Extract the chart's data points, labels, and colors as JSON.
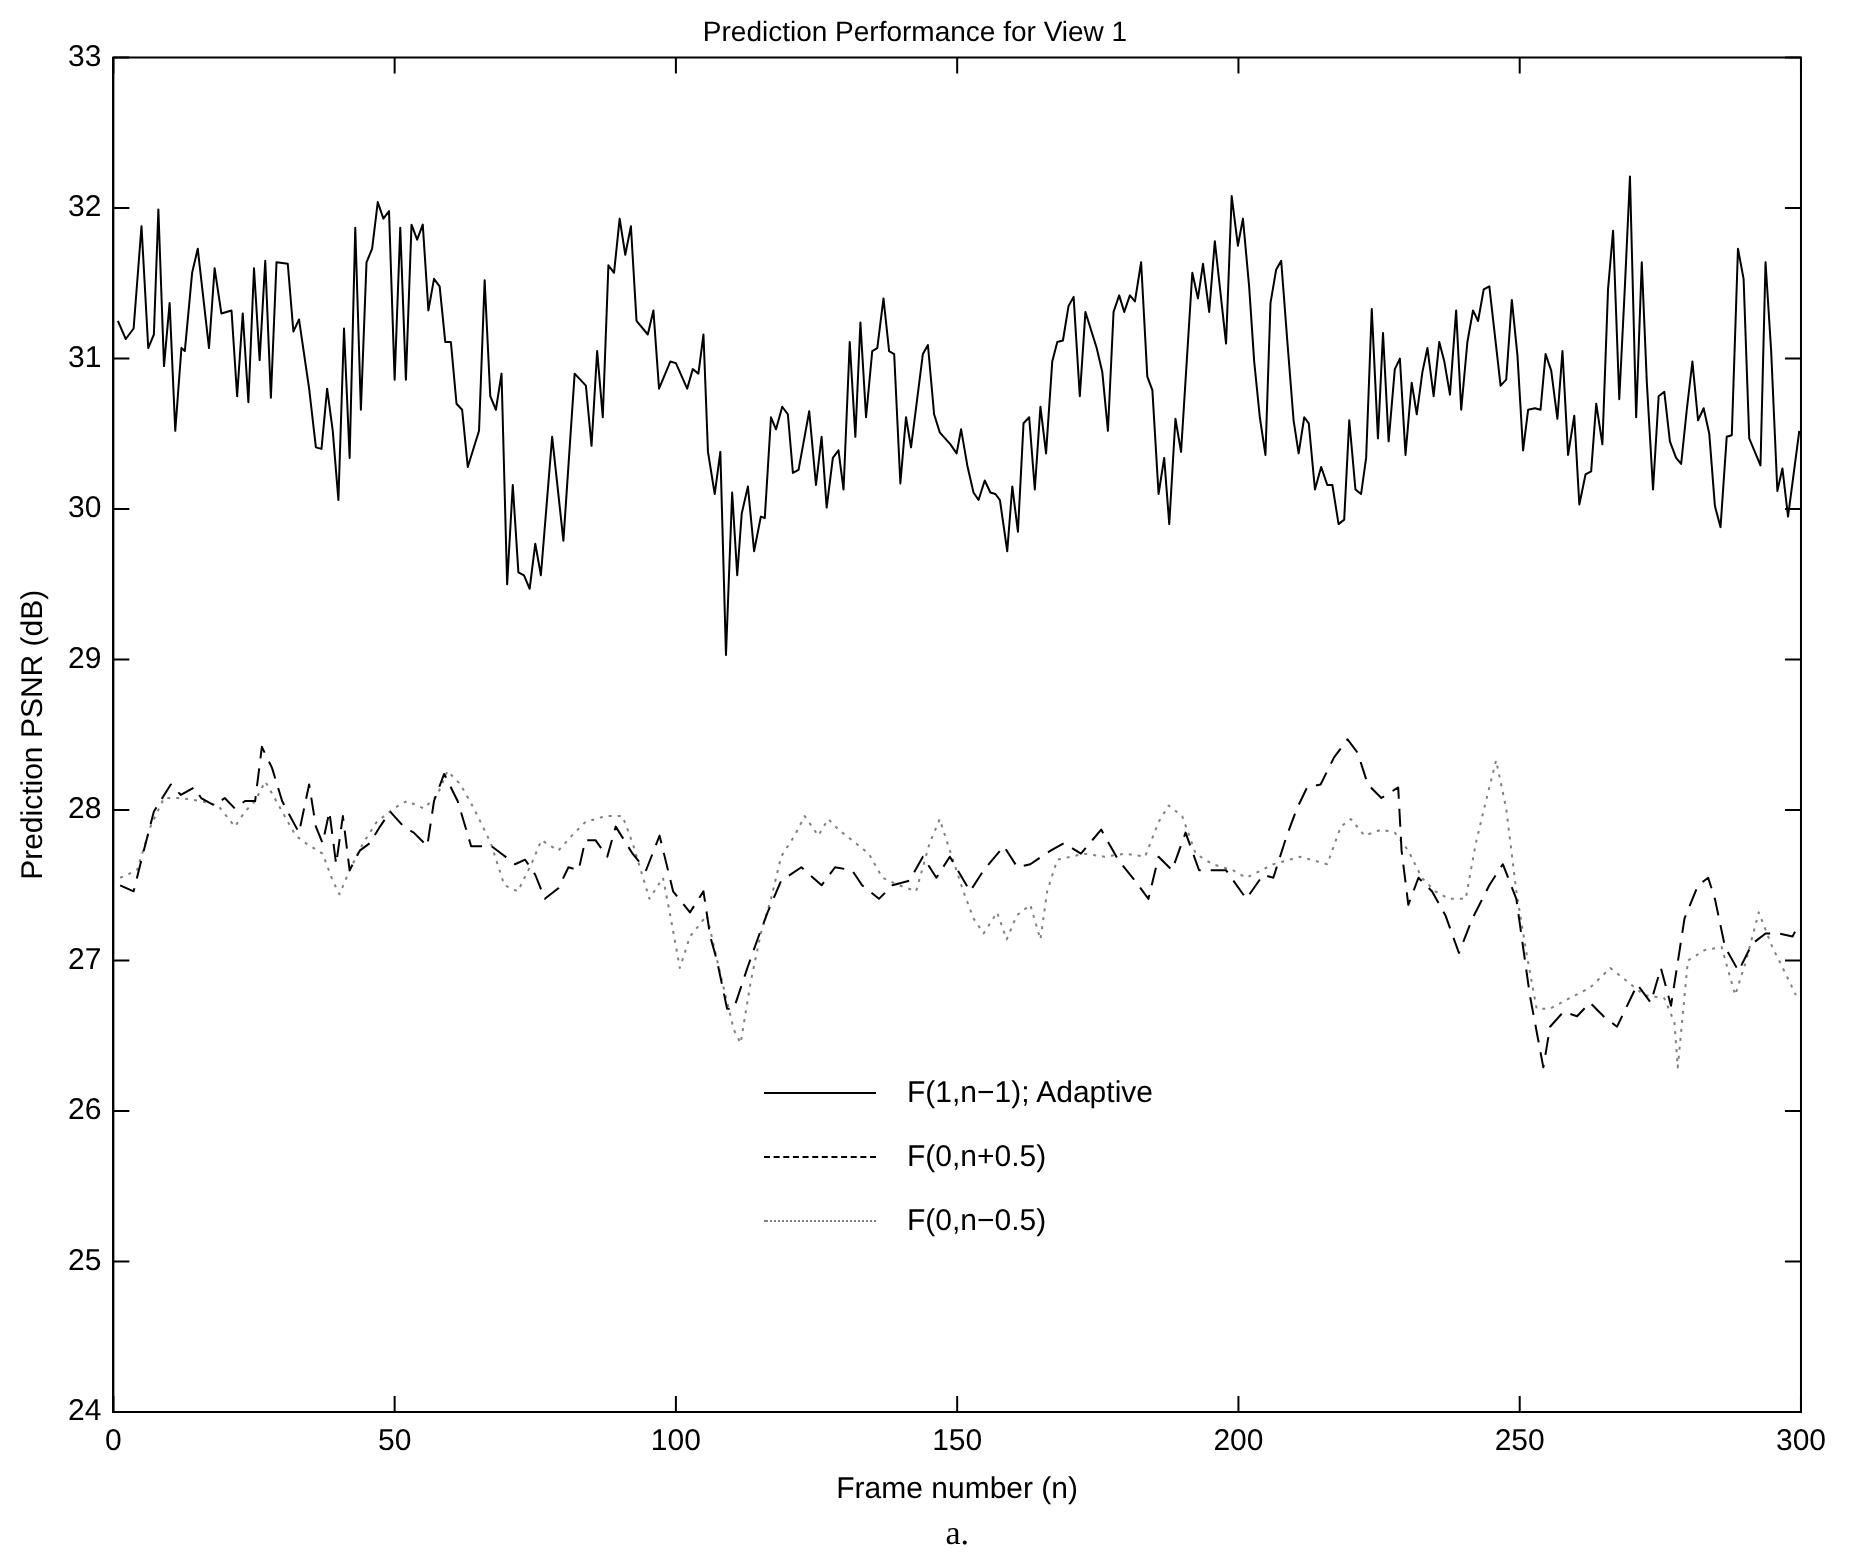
{
  "chart_data": {
    "type": "line",
    "title": "Prediction Performance for View 1",
    "xlabel": "Frame number (n)",
    "ylabel": "Prediction PSNR (dB)",
    "annotations": [
      "a."
    ],
    "xlim": [
      0,
      300
    ],
    "ylim": [
      24,
      33
    ],
    "xticks": [
      0,
      50,
      100,
      150,
      200,
      250,
      300
    ],
    "yticks": [
      24,
      25,
      26,
      27,
      28,
      29,
      30,
      31,
      32,
      33
    ],
    "grid": false,
    "legend": "bottom",
    "marker": "none",
    "series": [
      {
        "name": "F(1,n−1); Adaptive",
        "color": "#000000",
        "line_style": "solid",
        "x": [
          0.8,
          2.2,
          3.6,
          5,
          6.2,
          7.2,
          8,
          9,
          10,
          11,
          12.1,
          12.7,
          14,
          15,
          17,
          18,
          19.2,
          21,
          22,
          23,
          24,
          25,
          26,
          27,
          28,
          29,
          31,
          32,
          33,
          34.8,
          36,
          37,
          38,
          39,
          40,
          41,
          42,
          43,
          44,
          45,
          46,
          47,
          48,
          49,
          50,
          51,
          52,
          53,
          54,
          55,
          56,
          57,
          58,
          59,
          60,
          61,
          62,
          63,
          65,
          66,
          67,
          68,
          69,
          70,
          71,
          72,
          73,
          74,
          75,
          76,
          78,
          80,
          82,
          84,
          85,
          86,
          87,
          88,
          89,
          90,
          91,
          92,
          93,
          95,
          96,
          97,
          99,
          100,
          102,
          103,
          104,
          104.9,
          105.7,
          106.9,
          107.9,
          108.9,
          110,
          110.9,
          111.7,
          112.8,
          113.9,
          115.1,
          115.8,
          116.9,
          117.8,
          118.9,
          119.9,
          120.8,
          121.8,
          123.7,
          124.9,
          125.9,
          126.8,
          127.9,
          128.9,
          129.8,
          130.9,
          131.9,
          132.8,
          133.8,
          134.9,
          135.8,
          136.9,
          137.9,
          138.8,
          139.9,
          140.9,
          141.8,
          143.9,
          144.8,
          145.9,
          146.9,
          148.8,
          149.9,
          150.7,
          151.8,
          152.9,
          153.8,
          154.9,
          155.9,
          156.8,
          157.6,
          158.9,
          159.8,
          160.8,
          161.8,
          162.8,
          163.8,
          164.8,
          165.8,
          166.9,
          167.8,
          168.8,
          169.8,
          170.7,
          171.8,
          172.8,
          174.8,
          175.8,
          176.8,
          177.8,
          178.8,
          179.7,
          180.7,
          181.6,
          182.7,
          183.8,
          184.7,
          185.8,
          186.8,
          187.7,
          188.8,
          189.8,
          191.8,
          192.8,
          193.7,
          194.8,
          195.8,
          197.8,
          198.8,
          199.9,
          200.8,
          201.9,
          202.8,
          203.8,
          204.8,
          205.7,
          206.7,
          207.6,
          208.7,
          209.8,
          210.7,
          211.7,
          212.5,
          213.6,
          214.7,
          215.8,
          216.7,
          217.8,
          218.8,
          219.7,
          220.8,
          221.8,
          222.7,
          223.7,
          224.8,
          225.7,
          226.7,
          227.8,
          228.7,
          229.7,
          230.8,
          231.7,
          232.7,
          233.6,
          234.7,
          235.7,
          236.6,
          237.6,
          238.7,
          239.6,
          240.7,
          241.7,
          242.6,
          243.6,
          244.6,
          246.6,
          247.6,
          248.6,
          249.6,
          250.6,
          251.5,
          252.7,
          253.7,
          254.6,
          255.6,
          256.7,
          257.6,
          258.6,
          259.7,
          260.6,
          261.7,
          262.7,
          263.6,
          264.7,
          265.7,
          266.6,
          267.7,
          268.7,
          269.6,
          270.7,
          271.7,
          272.6,
          273.7,
          274.7,
          275.7,
          276.7,
          277.8,
          278.7,
          279.7,
          280.7,
          281.7,
          282.7,
          283.7,
          284.7,
          285.7,
          286.8,
          287.7,
          288.8,
          289.8,
          290.8,
          291.8,
          292.8,
          293.7,
          294.7,
          295.8,
          296.7,
          297.7,
          299.7
        ],
        "values": [
          31.25,
          31.13,
          31.2,
          31.88,
          31.07,
          31.16,
          31.99,
          30.95,
          31.37,
          30.52,
          31.07,
          31.05,
          31.57,
          31.73,
          31.07,
          31.6,
          31.3,
          31.32,
          30.75,
          31.3,
          30.71,
          31.6,
          30.99,
          31.65,
          30.74,
          31.64,
          31.63,
          31.18,
          31.26,
          30.8,
          30.41,
          30.4,
          30.8,
          30.52,
          30.06,
          31.2,
          30.34,
          31.87,
          30.66,
          31.64,
          31.73,
          32.04,
          31.93,
          31.98,
          30.86,
          31.87,
          30.86,
          31.89,
          31.79,
          31.89,
          31.32,
          31.53,
          31.48,
          31.11,
          31.11,
          30.7,
          30.66,
          30.28,
          30.52,
          31.52,
          30.75,
          30.66,
          30.9,
          29.5,
          30.16,
          29.58,
          29.56,
          29.47,
          29.77,
          29.56,
          30.48,
          29.79,
          30.9,
          30.82,
          30.42,
          31.05,
          30.61,
          31.62,
          31.57,
          31.93,
          31.69,
          31.88,
          31.25,
          31.16,
          31.32,
          30.8,
          30.98,
          30.97,
          30.8,
          30.93,
          30.9,
          31.16,
          30.38,
          30.1,
          30.38,
          29.03,
          30.11,
          29.56,
          29.97,
          30.15,
          29.72,
          29.95,
          29.94,
          30.61,
          30.53,
          30.68,
          30.63,
          30.24,
          30.26,
          30.65,
          30.16,
          30.48,
          30.01,
          30.34,
          30.39,
          30.13,
          31.11,
          30.48,
          31.24,
          30.61,
          31.05,
          31.07,
          31.4,
          31.05,
          31.03,
          30.17,
          30.61,
          30.41,
          31.03,
          31.09,
          30.63,
          30.51,
          30.43,
          30.37,
          30.53,
          30.29,
          30.11,
          30.06,
          30.19,
          30.11,
          30.1,
          30.06,
          29.72,
          30.15,
          29.85,
          30.57,
          30.61,
          30.13,
          30.68,
          30.37,
          30.98,
          31.11,
          31.12,
          31.35,
          31.41,
          30.75,
          31.31,
          31.07,
          30.91,
          30.52,
          31.31,
          31.42,
          31.31,
          31.42,
          31.38,
          31.64,
          30.88,
          30.79,
          30.1,
          30.34,
          29.9,
          30.6,
          30.38,
          31.57,
          31.4,
          31.63,
          31.31,
          31.78,
          31.1,
          32.08,
          31.75,
          31.93,
          31.48,
          30.98,
          30.61,
          30.36,
          31.37,
          31.59,
          31.65,
          31.11,
          30.59,
          30.37,
          30.61,
          30.57,
          30.13,
          30.28,
          30.16,
          30.16,
          29.9,
          29.93,
          30.59,
          30.13,
          30.1,
          30.34,
          31.33,
          30.47,
          31.17,
          30.45,
          30.93,
          31.0,
          30.36,
          30.84,
          30.63,
          30.91,
          31.07,
          30.75,
          31.11,
          30.98,
          30.76,
          31.32,
          30.66,
          31.11,
          31.32,
          31.25,
          31.46,
          31.48,
          30.82,
          30.86,
          31.39,
          31.02,
          30.39,
          30.66,
          30.67,
          30.66,
          31.03,
          30.92,
          30.6,
          31.05,
          30.36,
          30.62,
          30.03,
          30.23,
          30.25,
          30.7,
          30.43,
          31.46,
          31.85,
          30.73,
          31.48,
          32.21,
          30.61,
          31.64,
          30.84,
          30.13,
          30.75,
          30.78,
          30.45,
          30.34,
          30.3,
          30.66,
          30.98,
          30.59,
          30.67,
          30.5,
          30.02,
          29.88,
          30.48,
          30.49,
          31.73,
          31.53,
          30.47,
          30.38,
          30.29,
          31.64,
          31.05,
          30.12,
          30.27,
          29.95,
          30.52
        ]
      },
      {
        "name": "F(0,n+0.5)",
        "color": "#000000",
        "line_style": "dashed",
        "x": [
          1.2,
          3.6,
          5.4,
          7.2,
          10.2,
          12,
          14.4,
          15.6,
          18,
          19.8,
          21.6,
          23.4,
          25.2,
          26.4,
          28.2,
          30,
          31.4,
          33,
          34.8,
          36,
          37.2,
          38.4,
          39.6,
          40.8,
          42,
          43.8,
          45.6,
          47.4,
          49.2,
          51.6,
          53.4,
          55.8,
          57,
          58.8,
          61.2,
          63.6,
          67.2,
          69,
          71.4,
          73.2,
          75,
          76.7,
          79.1,
          80.9,
          82.7,
          83.9,
          85.7,
          87.8,
          89.3,
          92.3,
          94.7,
          97.1,
          99.5,
          102.5,
          104.9,
          106.1,
          107.3,
          109.1,
          110.3,
          112.7,
          114.5,
          116.3,
          118.7,
          122.3,
          125.9,
          128.3,
          131.3,
          133.1,
          136.1,
          138.5,
          141.5,
          143.9,
          146.3,
          148.7,
          152.3,
          154.7,
          158.3,
          160.7,
          163,
          166.6,
          169,
          172,
          175.6,
          178.6,
          181.6,
          184,
          185.8,
          188.2,
          190.6,
          193,
          197.8,
          201.4,
          204.4,
          206.2,
          208.6,
          210.4,
          212.2,
          214.6,
          217,
          219.4,
          221.2,
          223,
          225.4,
          228.4,
          229,
          230.2,
          232,
          234.4,
          236.8,
          239.2,
          241.6,
          244.6,
          247,
          249.4,
          250.6,
          251.8,
          254.2,
          255.4,
          257.8,
          260.2,
          262.5,
          264.9,
          267.3,
          270.9,
          273.3,
          275.1,
          276.9,
          279.3,
          281.7,
          283.5,
          284.7,
          286.5,
          288.9,
          291.3,
          293.7,
          296.1,
          298.5,
          299.5
        ],
        "values": [
          27.5,
          27.46,
          27.73,
          27.99,
          28.17,
          28.1,
          28.15,
          28.08,
          28.03,
          28.08,
          28.01,
          28.06,
          28.06,
          28.42,
          28.28,
          28.06,
          27.96,
          27.85,
          28.17,
          27.89,
          27.78,
          27.99,
          27.64,
          27.96,
          27.6,
          27.73,
          27.78,
          27.89,
          27.99,
          27.89,
          27.85,
          27.76,
          28.06,
          28.24,
          28.06,
          27.76,
          27.76,
          27.71,
          27.64,
          27.67,
          27.57,
          27.41,
          27.48,
          27.62,
          27.6,
          27.8,
          27.8,
          27.69,
          27.89,
          27.71,
          27.6,
          27.83,
          27.46,
          27.32,
          27.46,
          27.16,
          27.0,
          26.68,
          26.68,
          26.95,
          27.14,
          27.32,
          27.53,
          27.62,
          27.5,
          27.62,
          27.6,
          27.5,
          27.41,
          27.5,
          27.53,
          27.69,
          27.55,
          27.69,
          27.46,
          27.6,
          27.76,
          27.62,
          27.64,
          27.73,
          27.78,
          27.71,
          27.87,
          27.67,
          27.53,
          27.41,
          27.69,
          27.6,
          27.85,
          27.6,
          27.6,
          27.41,
          27.57,
          27.55,
          27.83,
          28.01,
          28.15,
          28.17,
          28.35,
          28.47,
          28.38,
          28.17,
          28.08,
          28.15,
          27.73,
          27.37,
          27.55,
          27.46,
          27.3,
          27.05,
          27.28,
          27.5,
          27.64,
          27.41,
          27.09,
          26.77,
          26.29,
          26.56,
          26.66,
          26.63,
          26.72,
          26.63,
          26.56,
          26.84,
          26.72,
          26.95,
          26.7,
          27.28,
          27.5,
          27.55,
          27.41,
          27.09,
          26.93,
          27.11,
          27.18,
          27.18,
          27.16,
          27.23
        ]
      },
      {
        "name": "F(0,n−0.5)",
        "color": "#808080",
        "line_style": "dotted",
        "x": [
          1.2,
          4.2,
          6.6,
          9,
          12,
          15.6,
          18.6,
          21.6,
          23.4,
          25.2,
          27,
          29.4,
          32.4,
          34.2,
          37.2,
          39,
          40.2,
          42,
          44.4,
          46.8,
          49.8,
          52.2,
          55.2,
          57.6,
          59.4,
          61.7,
          64.1,
          67.1,
          69.5,
          71.9,
          74.3,
          76.1,
          79.1,
          81.5,
          83.9,
          87.5,
          90.5,
          92.3,
          95.3,
          97.7,
          98.9,
          100.7,
          102.5,
          105.5,
          107.9,
          110.3,
          111.5,
          113.3,
          115.1,
          116.9,
          118.7,
          121.1,
          122.9,
          125.3,
          127.1,
          128.9,
          131.3,
          134.3,
          136.7,
          139.7,
          142.7,
          145.1,
          146.9,
          148.7,
          151.1,
          152.9,
          154.7,
          157.1,
          158.8,
          160.6,
          163,
          164.8,
          166,
          167.8,
          170.2,
          172.6,
          176.2,
          179.8,
          183.4,
          185.8,
          187.6,
          190,
          192.4,
          195.4,
          199,
          201.4,
          206.2,
          211,
          215.8,
          218.2,
          220,
          222.4,
          225.4,
          227.8,
          230.2,
          232.6,
          235,
          237.4,
          240.4,
          242.2,
          244,
          245.8,
          247.6,
          249.4,
          251.2,
          253,
          255.4,
          258.9,
          262.5,
          266.1,
          268.5,
          272.1,
          275.7,
          277.5,
          278.1,
          279.9,
          282.9,
          285.9,
          288.3,
          290.1,
          292.5,
          294.9,
          297.3,
          299.1
        ],
        "values": [
          27.55,
          27.6,
          27.89,
          28.08,
          28.08,
          28.06,
          28.03,
          27.89,
          27.99,
          28.06,
          28.19,
          28.03,
          27.83,
          27.78,
          27.71,
          27.53,
          27.44,
          27.6,
          27.78,
          27.92,
          28.01,
          28.06,
          28.01,
          28.1,
          28.26,
          28.17,
          28.01,
          27.78,
          27.5,
          27.46,
          27.64,
          27.8,
          27.73,
          27.83,
          27.92,
          27.96,
          27.96,
          27.78,
          27.41,
          27.55,
          27.32,
          26.95,
          27.16,
          27.3,
          26.91,
          26.54,
          26.45,
          26.86,
          27.18,
          27.41,
          27.69,
          27.83,
          27.96,
          27.83,
          27.94,
          27.87,
          27.8,
          27.71,
          27.55,
          27.5,
          27.46,
          27.78,
          27.94,
          27.73,
          27.46,
          27.28,
          27.18,
          27.32,
          27.14,
          27.3,
          27.37,
          27.14,
          27.46,
          27.67,
          27.69,
          27.71,
          27.69,
          27.71,
          27.69,
          27.92,
          28.03,
          27.96,
          27.71,
          27.64,
          27.6,
          27.55,
          27.64,
          27.69,
          27.64,
          27.89,
          27.94,
          27.83,
          27.87,
          27.85,
          27.73,
          27.55,
          27.46,
          27.41,
          27.41,
          27.78,
          28.06,
          28.33,
          28.01,
          27.46,
          27.05,
          26.68,
          26.68,
          26.75,
          26.82,
          26.95,
          26.88,
          26.77,
          26.75,
          26.59,
          26.29,
          27.0,
          27.07,
          27.09,
          26.77,
          26.98,
          27.32,
          27.09,
          26.91,
          26.77
        ]
      }
    ]
  }
}
